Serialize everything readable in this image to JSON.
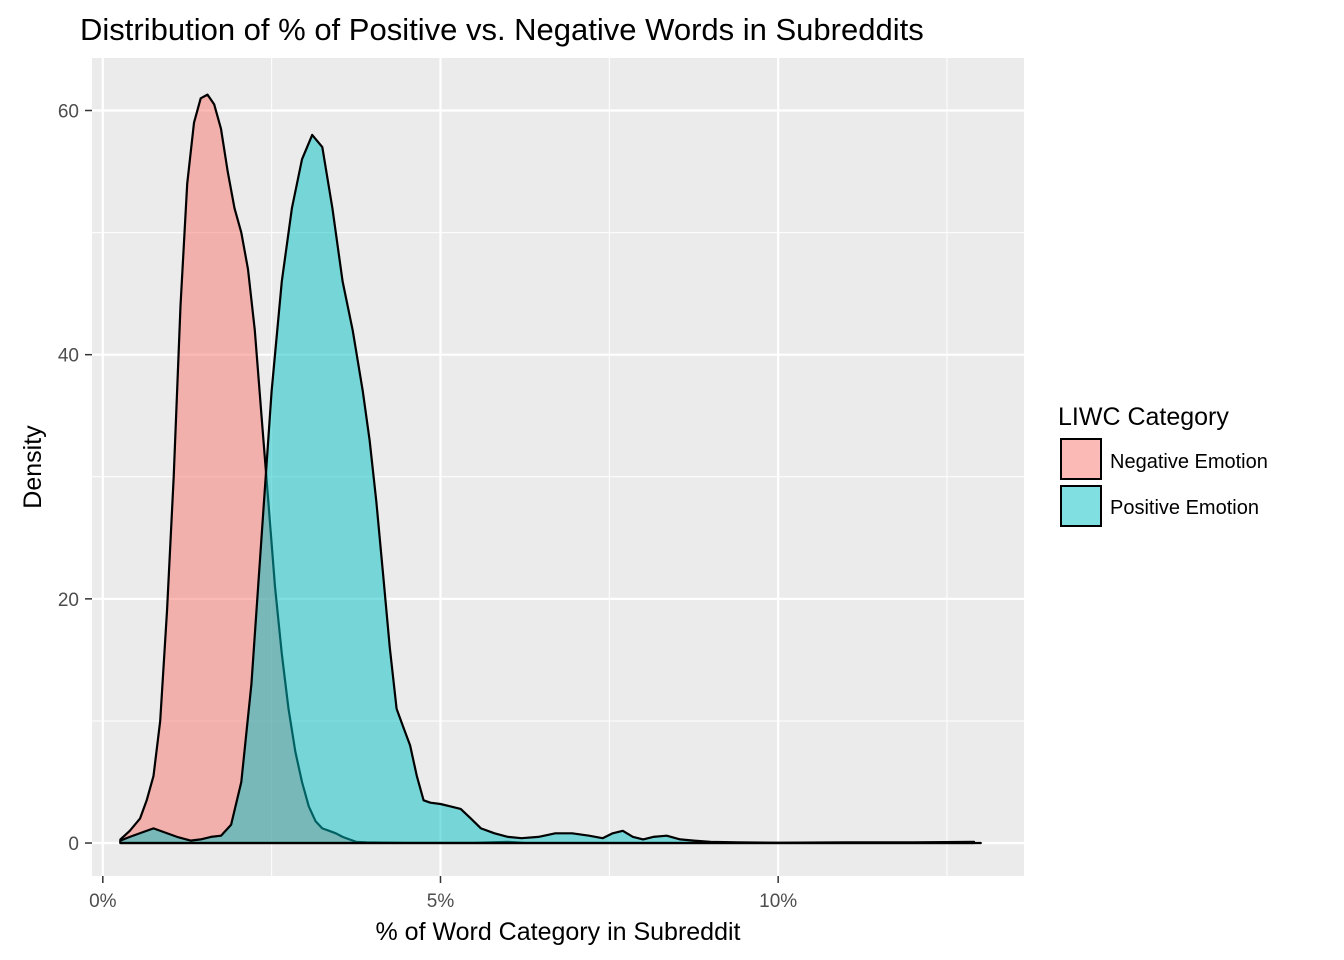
{
  "chart_data": {
    "type": "area",
    "title": "Distribution of % of Positive vs. Negative Words in Subreddits",
    "xlabel": "% of Word Category in Subreddit",
    "ylabel": "Density",
    "x_ticks": [
      "0%",
      "5%",
      "10%"
    ],
    "y_ticks": [
      "0",
      "20",
      "40",
      "60"
    ],
    "xlim": [
      -0.0016,
      0.1364
    ],
    "ylim": [
      -2.7,
      64.3
    ],
    "grid": true,
    "legend": {
      "title": "LIWC Category",
      "position": "right"
    },
    "series": [
      {
        "name": "Negative Emotion",
        "color": "#F8766D",
        "points": [
          [
            0.0026,
            0.3
          ],
          [
            0.004,
            1.0
          ],
          [
            0.0055,
            2.0
          ],
          [
            0.0065,
            3.5
          ],
          [
            0.0075,
            5.5
          ],
          [
            0.0085,
            10
          ],
          [
            0.0095,
            19
          ],
          [
            0.0105,
            30
          ],
          [
            0.0115,
            44
          ],
          [
            0.0125,
            54
          ],
          [
            0.0135,
            59
          ],
          [
            0.0145,
            61
          ],
          [
            0.0155,
            61.3
          ],
          [
            0.0165,
            60.5
          ],
          [
            0.0175,
            58.5
          ],
          [
            0.0185,
            55
          ],
          [
            0.0195,
            52
          ],
          [
            0.0205,
            50
          ],
          [
            0.0215,
            47
          ],
          [
            0.0225,
            42
          ],
          [
            0.0235,
            35
          ],
          [
            0.0245,
            28
          ],
          [
            0.0255,
            21
          ],
          [
            0.0265,
            15.5
          ],
          [
            0.0275,
            11
          ],
          [
            0.0285,
            7.5
          ],
          [
            0.0295,
            5
          ],
          [
            0.0305,
            3
          ],
          [
            0.0315,
            1.8
          ],
          [
            0.0325,
            1.2
          ],
          [
            0.0335,
            1.0
          ],
          [
            0.0345,
            0.8
          ],
          [
            0.0355,
            0.5
          ],
          [
            0.0365,
            0.3
          ],
          [
            0.0375,
            0.1
          ],
          [
            0.039,
            0.05
          ],
          [
            0.045,
            0.02
          ],
          [
            0.055,
            0.01
          ],
          [
            0.06,
            0.1
          ],
          [
            0.0625,
            0.0
          ],
          [
            0.07,
            0.0
          ],
          [
            0.08,
            0.0
          ],
          [
            0.1,
            0.0
          ],
          [
            0.13,
            0.0
          ]
        ]
      },
      {
        "name": "Positive Emotion",
        "color": "#00BFC4",
        "points": [
          [
            0.0026,
            0.2
          ],
          [
            0.004,
            0.5
          ],
          [
            0.006,
            0.9
          ],
          [
            0.0075,
            1.2
          ],
          [
            0.009,
            0.9
          ],
          [
            0.011,
            0.5
          ],
          [
            0.013,
            0.2
          ],
          [
            0.0145,
            0.3
          ],
          [
            0.016,
            0.5
          ],
          [
            0.0175,
            0.6
          ],
          [
            0.019,
            1.5
          ],
          [
            0.0205,
            5
          ],
          [
            0.022,
            13
          ],
          [
            0.0235,
            25
          ],
          [
            0.025,
            37
          ],
          [
            0.0265,
            46
          ],
          [
            0.028,
            52
          ],
          [
            0.0295,
            56
          ],
          [
            0.031,
            58
          ],
          [
            0.0325,
            57
          ],
          [
            0.034,
            52
          ],
          [
            0.0355,
            46
          ],
          [
            0.037,
            42
          ],
          [
            0.0385,
            37
          ],
          [
            0.0395,
            33
          ],
          [
            0.0405,
            28
          ],
          [
            0.0415,
            22
          ],
          [
            0.0425,
            16
          ],
          [
            0.0435,
            11
          ],
          [
            0.0445,
            9.5
          ],
          [
            0.0455,
            8
          ],
          [
            0.0465,
            5.5
          ],
          [
            0.0475,
            3.5
          ],
          [
            0.0485,
            3.3
          ],
          [
            0.05,
            3.2
          ],
          [
            0.0515,
            3.0
          ],
          [
            0.053,
            2.8
          ],
          [
            0.0545,
            2.0
          ],
          [
            0.056,
            1.2
          ],
          [
            0.058,
            0.8
          ],
          [
            0.06,
            0.5
          ],
          [
            0.062,
            0.4
          ],
          [
            0.0645,
            0.5
          ],
          [
            0.067,
            0.8
          ],
          [
            0.0695,
            0.8
          ],
          [
            0.072,
            0.6
          ],
          [
            0.074,
            0.4
          ],
          [
            0.0755,
            0.8
          ],
          [
            0.077,
            1.0
          ],
          [
            0.0785,
            0.5
          ],
          [
            0.08,
            0.3
          ],
          [
            0.0815,
            0.5
          ],
          [
            0.0835,
            0.6
          ],
          [
            0.0855,
            0.3
          ],
          [
            0.0875,
            0.2
          ],
          [
            0.09,
            0.1
          ],
          [
            0.094,
            0.05
          ],
          [
            0.1,
            0.03
          ],
          [
            0.11,
            0.05
          ],
          [
            0.12,
            0.05
          ],
          [
            0.129,
            0.1
          ]
        ]
      }
    ]
  }
}
